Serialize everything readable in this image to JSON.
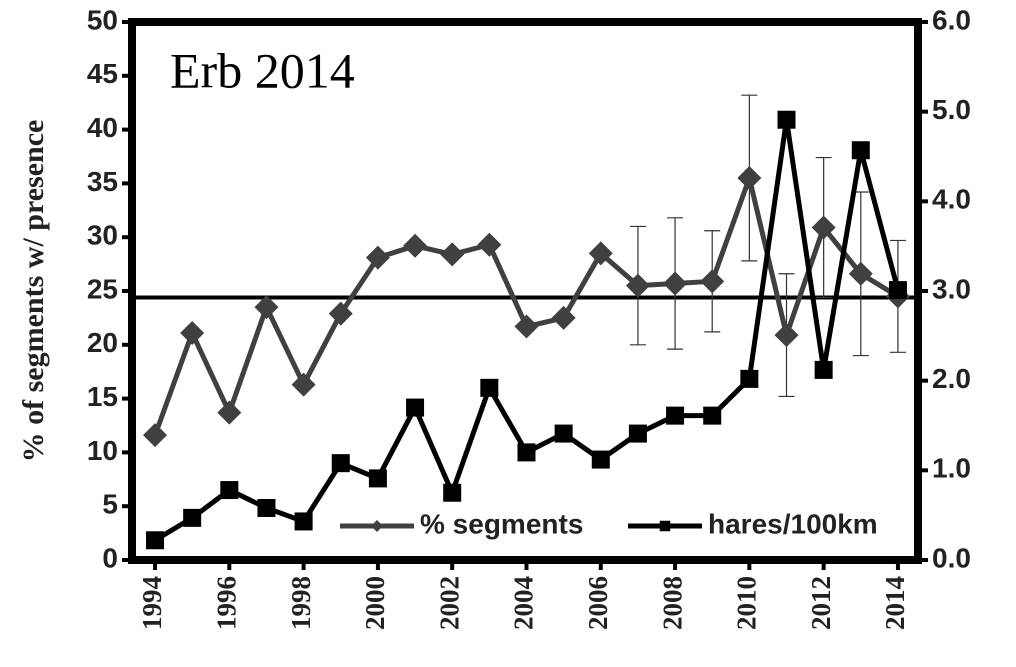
{
  "chart_data": {
    "type": "line",
    "annotation": "Erb 2014",
    "ylabel": "% of segments w/ presence",
    "x": [
      1994,
      1995,
      1996,
      1997,
      1998,
      1999,
      2000,
      2001,
      2002,
      2003,
      2004,
      2005,
      2006,
      2007,
      2008,
      2009,
      2010,
      2011,
      2012,
      2013,
      2014
    ],
    "xlim": [
      1993.38,
      2014.54
    ],
    "xticks": [
      1994,
      1996,
      1998,
      2000,
      2002,
      2004,
      2006,
      2008,
      2010,
      2012,
      2014
    ],
    "ylim": [
      0,
      50
    ],
    "yticks": [
      0,
      5,
      10,
      15,
      20,
      25,
      30,
      35,
      40,
      45,
      50
    ],
    "y2lim": [
      0,
      6
    ],
    "y2ticks": [
      {
        "value": 0,
        "label": "0.0"
      },
      {
        "value": 1,
        "label": "1.0"
      },
      {
        "value": 2,
        "label": "2.0"
      },
      {
        "value": 3,
        "label": "3.0"
      },
      {
        "value": 4,
        "label": "4.0"
      },
      {
        "value": 5,
        "label": "5.0"
      },
      {
        "value": 6,
        "label": "6.0"
      }
    ],
    "hline": 24.4,
    "legend": "bottom",
    "series": [
      {
        "name": "% segments",
        "color": "#404040",
        "marker": "diamond",
        "values": [
          11.6,
          21.1,
          13.7,
          23.5,
          16.3,
          22.9,
          28.1,
          29.2,
          28.4,
          29.3,
          21.7,
          22.5,
          28.5,
          25.5,
          25.7,
          25.9,
          35.5,
          20.9,
          30.9,
          26.6,
          24.5
        ],
        "errors": [
          null,
          null,
          null,
          null,
          null,
          null,
          null,
          null,
          null,
          null,
          null,
          null,
          null,
          5.5,
          6.1,
          4.7,
          7.7,
          5.7,
          6.5,
          7.6,
          5.2
        ]
      },
      {
        "name": "hares/100km",
        "color": "#000000",
        "marker": "square",
        "axis": "y2",
        "values": [
          0.22,
          0.47,
          0.78,
          0.58,
          0.43,
          1.08,
          0.91,
          1.7,
          0.75,
          1.92,
          1.2,
          1.41,
          1.12,
          1.41,
          1.61,
          1.61,
          2.02,
          4.91,
          2.12,
          4.57,
          3.01
        ]
      }
    ]
  }
}
